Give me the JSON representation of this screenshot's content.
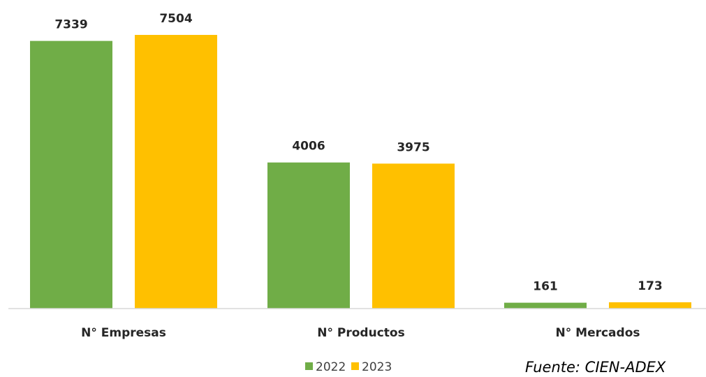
{
  "chart_data": {
    "type": "bar",
    "categories": [
      "N° Empresas",
      "N° Productos",
      "N° Mercados"
    ],
    "series": [
      {
        "name": "2022",
        "color": "#70ad47",
        "values": [
          7339,
          4006,
          161
        ]
      },
      {
        "name": "2023",
        "color": "#ffc000",
        "values": [
          7504,
          3975,
          173
        ]
      }
    ],
    "data_labels": true,
    "ylim": [
      0,
      7504
    ],
    "grid": false,
    "legend": "bottom-center"
  },
  "source": "Fuente: CIEN-ADEX"
}
